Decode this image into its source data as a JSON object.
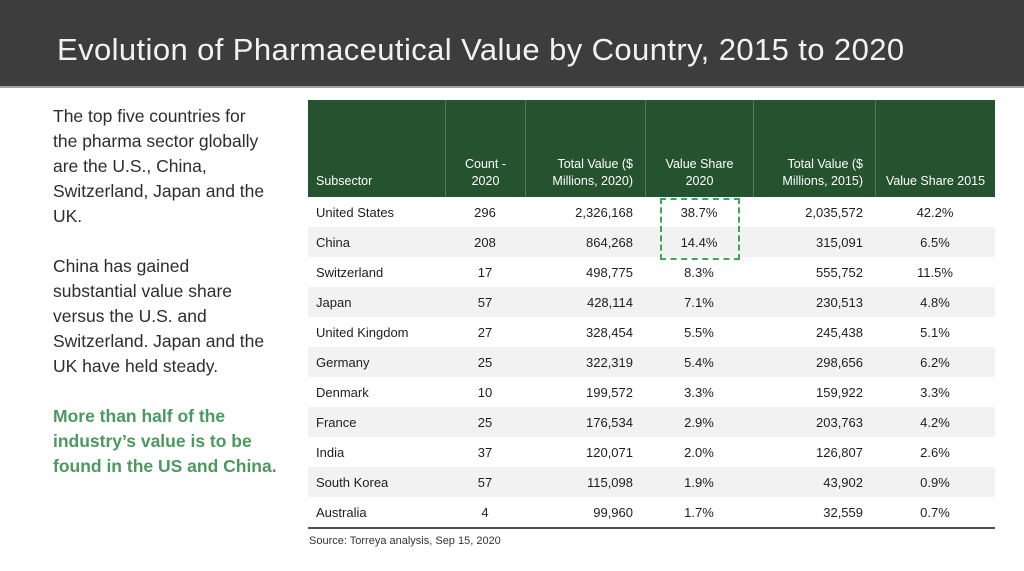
{
  "title": "Evolution of Pharmaceutical Value by Country, 2015 to 2020",
  "commentary": {
    "para1": "The top five countries for\nthe pharma sector globally\nare the U.S., China,\nSwitzerland, Japan and the\nUK.",
    "para2": "China has gained\nsubstantial value share\nversus the U.S. and\nSwitzerland. Japan and the\nUK have held steady.",
    "highlight": "More than half of the\nindustry’s value is to be\nfound in the US and China."
  },
  "table": {
    "columns": [
      "Subsector",
      "Count -\n2020",
      "Total Value ($\nMillions, 2020)",
      "Value Share\n2020",
      "Total Value ($\nMillions, 2015)",
      "Value Share 2015"
    ],
    "rows": [
      [
        "United States",
        "296",
        "2,326,168",
        "38.7%",
        "2,035,572",
        "42.2%"
      ],
      [
        "China",
        "208",
        "864,268",
        "14.4%",
        "315,091",
        "6.5%"
      ],
      [
        "Switzerland",
        "17",
        "498,775",
        "8.3%",
        "555,752",
        "11.5%"
      ],
      [
        "Japan",
        "57",
        "428,114",
        "7.1%",
        "230,513",
        "4.8%"
      ],
      [
        "United Kingdom",
        "27",
        "328,454",
        "5.5%",
        "245,438",
        "5.1%"
      ],
      [
        "Germany",
        "25",
        "322,319",
        "5.4%",
        "298,656",
        "6.2%"
      ],
      [
        "Denmark",
        "10",
        "199,572",
        "3.3%",
        "159,922",
        "3.3%"
      ],
      [
        "France",
        "25",
        "176,534",
        "2.9%",
        "203,763",
        "4.2%"
      ],
      [
        "India",
        "37",
        "120,071",
        "2.0%",
        "126,807",
        "2.6%"
      ],
      [
        "South Korea",
        "57",
        "115,098",
        "1.9%",
        "43,902",
        "0.9%"
      ],
      [
        "Australia",
        "4",
        "99,960",
        "1.7%",
        "32,559",
        "0.7%"
      ]
    ],
    "highlight_box": {
      "column": "Value Share 2020",
      "rows": [
        "United States",
        "China"
      ],
      "values": [
        "38.7%",
        "14.4%"
      ]
    }
  },
  "source": "Source: Torreya analysis, Sep 15, 2020",
  "colors": {
    "titlebar-bg": "#3d3d3d",
    "title-text": "#f2f2f2",
    "header-green": "#25522f",
    "accent-green": "#4a9a5f",
    "dash-green": "#3fa551",
    "alt-row": "#f2f2f2"
  }
}
